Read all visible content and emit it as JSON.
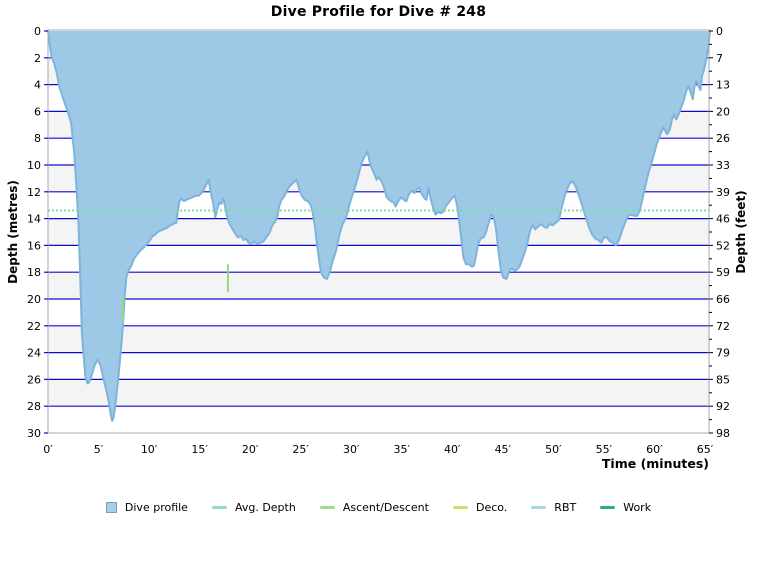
{
  "title": "Dive Profile for Dive # 248",
  "axes": {
    "x": {
      "label": "Time (minutes)"
    },
    "y_left": {
      "label": "Depth (metres)"
    },
    "y_right": {
      "label": "Depth (feet)"
    }
  },
  "legend": [
    {
      "label": "Dive profile",
      "swatch": "square",
      "color": "#a5cee9",
      "border": "#6f9fcd"
    },
    {
      "label": "Avg. Depth",
      "swatch": "line",
      "color": "#8fe0b4"
    },
    {
      "label": "Ascent/Descent",
      "swatch": "line",
      "color": "#a0dc82"
    },
    {
      "label": "Deco.",
      "swatch": "line",
      "color": "#d8d96a"
    },
    {
      "label": "RBT",
      "swatch": "line",
      "color": "#a9d5f0"
    },
    {
      "label": "Work",
      "swatch": "line",
      "color": "#33a98c"
    }
  ],
  "colors": {
    "gridline": "#0d0dcd",
    "band": "#f4f4f5",
    "border": "#a9a9ad",
    "area_fill": "#9dc9e6",
    "area_stroke": "#7eb3dc",
    "avg_depth_line": "#7edbac",
    "ascent_marker": "#99d97e",
    "tick_text": "#000000"
  },
  "chart_data": {
    "type": "area",
    "title": "Dive Profile for Dive # 248",
    "xlabel": "Time (minutes)",
    "ylabel": "Depth (metres)",
    "ylabel_right": "Depth (feet)",
    "xlim": [
      0,
      65.5
    ],
    "ylim": [
      0,
      30
    ],
    "y_inverted": true,
    "grid": true,
    "legend_position": "bottom",
    "x_ticks": [
      0,
      5,
      10,
      15,
      20,
      25,
      30,
      35,
      40,
      45,
      50,
      55,
      60,
      65
    ],
    "x_tick_labels": [
      "0′",
      "5′",
      "10′",
      "15′",
      "20′",
      "25′",
      "30′",
      "35′",
      "40′",
      "45′",
      "50′",
      "55′",
      "60′",
      "65′"
    ],
    "y_ticks_metres": [
      0,
      2,
      4,
      6,
      8,
      10,
      12,
      14,
      16,
      18,
      20,
      22,
      24,
      26,
      28,
      30
    ],
    "y_tick_labels_feet": [
      "0",
      "7",
      "13",
      "20",
      "26",
      "33",
      "39",
      "46",
      "52",
      "59",
      "66",
      "72",
      "79",
      "85",
      "92",
      "98"
    ],
    "avg_depth_metres": 13.4,
    "max_depth_metres": 29.1,
    "duration_minutes": 65.5,
    "ascent_descent_markers": [
      {
        "t": 7.4,
        "from_m": 19.9,
        "to_m": 21.7
      },
      {
        "t": 17.8,
        "from_m": 17.4,
        "to_m": 19.5
      }
    ],
    "series": [
      {
        "name": "Dive profile",
        "units": [
          "minutes",
          "metres"
        ],
        "points": [
          [
            0,
            0
          ],
          [
            0.2,
            1.2
          ],
          [
            0.35,
            1.9
          ],
          [
            0.6,
            2.4
          ],
          [
            0.85,
            3.1
          ],
          [
            1.1,
            4.1
          ],
          [
            1.4,
            4.8
          ],
          [
            1.7,
            5.5
          ],
          [
            2,
            6.1
          ],
          [
            2.3,
            6.9
          ],
          [
            2.6,
            9.2
          ],
          [
            2.8,
            11.5
          ],
          [
            3,
            14
          ],
          [
            3.2,
            18.5
          ],
          [
            3.35,
            22.6
          ],
          [
            3.5,
            24
          ],
          [
            3.7,
            25.8
          ],
          [
            3.9,
            26.3
          ],
          [
            4.1,
            26.2
          ],
          [
            4.35,
            25.6
          ],
          [
            4.6,
            25
          ],
          [
            4.9,
            24.5
          ],
          [
            5.2,
            25
          ],
          [
            5.5,
            26
          ],
          [
            5.8,
            26.9
          ],
          [
            6,
            27.6
          ],
          [
            6.2,
            28.6
          ],
          [
            6.35,
            29.1
          ],
          [
            6.5,
            28.8
          ],
          [
            6.65,
            28
          ],
          [
            6.8,
            27
          ],
          [
            7,
            25.6
          ],
          [
            7.15,
            24.3
          ],
          [
            7.3,
            23
          ],
          [
            7.45,
            21.5
          ],
          [
            7.6,
            19.6
          ],
          [
            7.75,
            18.4
          ],
          [
            7.9,
            18
          ],
          [
            8.1,
            17.7
          ],
          [
            8.3,
            17.4
          ],
          [
            8.5,
            17
          ],
          [
            8.8,
            16.7
          ],
          [
            9.1,
            16.4
          ],
          [
            9.4,
            16.2
          ],
          [
            9.8,
            15.9
          ],
          [
            10.1,
            15.6
          ],
          [
            10.35,
            15.3
          ],
          [
            10.6,
            15.2
          ],
          [
            10.85,
            15
          ],
          [
            11.1,
            14.9
          ],
          [
            11.45,
            14.8
          ],
          [
            11.75,
            14.7
          ],
          [
            12.1,
            14.5
          ],
          [
            12.4,
            14.4
          ],
          [
            12.7,
            14.3
          ],
          [
            12.85,
            13.4
          ],
          [
            13,
            12.7
          ],
          [
            13.2,
            12.5
          ],
          [
            13.45,
            12.7
          ],
          [
            13.7,
            12.6
          ],
          [
            14,
            12.5
          ],
          [
            14.3,
            12.4
          ],
          [
            14.6,
            12.3
          ],
          [
            14.9,
            12.3
          ],
          [
            15.2,
            12.1
          ],
          [
            15.5,
            11.7
          ],
          [
            15.75,
            11.3
          ],
          [
            15.9,
            11.1
          ],
          [
            16.1,
            12
          ],
          [
            16.35,
            12.9
          ],
          [
            16.55,
            13.9
          ],
          [
            16.75,
            13.3
          ],
          [
            16.95,
            12.8
          ],
          [
            17.15,
            12.9
          ],
          [
            17.35,
            12.5
          ],
          [
            17.55,
            13.2
          ],
          [
            17.7,
            13.8
          ],
          [
            17.9,
            14.3
          ],
          [
            18.2,
            14.7
          ],
          [
            18.5,
            15.1
          ],
          [
            18.8,
            15.4
          ],
          [
            19.1,
            15.3
          ],
          [
            19.35,
            15.6
          ],
          [
            19.6,
            15.5
          ],
          [
            19.85,
            15.8
          ],
          [
            20.1,
            15.9
          ],
          [
            20.4,
            15.7
          ],
          [
            20.7,
            15.9
          ],
          [
            21,
            15.8
          ],
          [
            21.3,
            15.7
          ],
          [
            21.6,
            15.4
          ],
          [
            21.9,
            15.1
          ],
          [
            22.2,
            14.5
          ],
          [
            22.5,
            14.2
          ],
          [
            22.7,
            13.8
          ],
          [
            22.9,
            13
          ],
          [
            23.1,
            12.6
          ],
          [
            23.4,
            12.3
          ],
          [
            23.7,
            11.8
          ],
          [
            24,
            11.5
          ],
          [
            24.3,
            11.3
          ],
          [
            24.6,
            11.1
          ],
          [
            24.85,
            11.8
          ],
          [
            25.1,
            12.3
          ],
          [
            25.4,
            12.6
          ],
          [
            25.7,
            12.7
          ],
          [
            26,
            13
          ],
          [
            26.2,
            13.6
          ],
          [
            26.4,
            14.5
          ],
          [
            26.6,
            15.8
          ],
          [
            26.8,
            17
          ],
          [
            27,
            18
          ],
          [
            27.3,
            18.4
          ],
          [
            27.6,
            18.5
          ],
          [
            27.9,
            17.9
          ],
          [
            28.2,
            17.1
          ],
          [
            28.5,
            16.4
          ],
          [
            28.8,
            15.3
          ],
          [
            29.1,
            14.5
          ],
          [
            29.5,
            13.9
          ],
          [
            29.8,
            13
          ],
          [
            30.1,
            12.3
          ],
          [
            30.4,
            11.6
          ],
          [
            30.7,
            10.8
          ],
          [
            31,
            9.9
          ],
          [
            31.3,
            9.4
          ],
          [
            31.6,
            9
          ],
          [
            31.9,
            10
          ],
          [
            32.2,
            10.5
          ],
          [
            32.5,
            11.1
          ],
          [
            32.7,
            10.9
          ],
          [
            33,
            11.2
          ],
          [
            33.25,
            11.7
          ],
          [
            33.5,
            12.4
          ],
          [
            33.9,
            12.7
          ],
          [
            34.2,
            12.8
          ],
          [
            34.4,
            13.1
          ],
          [
            34.65,
            12.7
          ],
          [
            34.95,
            12.4
          ],
          [
            35.2,
            12.6
          ],
          [
            35.45,
            12.7
          ],
          [
            35.7,
            12.2
          ],
          [
            36,
            11.9
          ],
          [
            36.25,
            12.1
          ],
          [
            36.5,
            11.8
          ],
          [
            36.75,
            11.7
          ],
          [
            37,
            12.2
          ],
          [
            37.25,
            12.5
          ],
          [
            37.45,
            12.6
          ],
          [
            37.65,
            11.7
          ],
          [
            37.85,
            12.5
          ],
          [
            38.1,
            13.2
          ],
          [
            38.35,
            13.7
          ],
          [
            38.6,
            13.5
          ],
          [
            38.85,
            13.6
          ],
          [
            39.1,
            13.5
          ],
          [
            39.35,
            13.1
          ],
          [
            39.65,
            12.8
          ],
          [
            39.95,
            12.5
          ],
          [
            40.25,
            12.3
          ],
          [
            40.5,
            13.1
          ],
          [
            40.7,
            14.3
          ],
          [
            40.9,
            15.6
          ],
          [
            41.1,
            16.9
          ],
          [
            41.35,
            17.4
          ],
          [
            41.65,
            17.4
          ],
          [
            41.95,
            17.6
          ],
          [
            42.15,
            17.5
          ],
          [
            42.35,
            16.8
          ],
          [
            42.55,
            15.9
          ],
          [
            42.8,
            15.5
          ],
          [
            43.1,
            15.4
          ],
          [
            43.35,
            15
          ],
          [
            43.6,
            14.3
          ],
          [
            43.85,
            13.7
          ],
          [
            44.1,
            13.9
          ],
          [
            44.3,
            14.6
          ],
          [
            44.55,
            16.3
          ],
          [
            44.8,
            17.8
          ],
          [
            45.05,
            18.4
          ],
          [
            45.35,
            18.5
          ],
          [
            45.65,
            17.9
          ],
          [
            45.9,
            17.7
          ],
          [
            46.15,
            17.9
          ],
          [
            46.4,
            17.8
          ],
          [
            46.65,
            17.6
          ],
          [
            46.9,
            17.1
          ],
          [
            47.15,
            16.6
          ],
          [
            47.4,
            15.9
          ],
          [
            47.7,
            14.9
          ],
          [
            47.95,
            14.5
          ],
          [
            48.2,
            14.8
          ],
          [
            48.5,
            14.6
          ],
          [
            48.8,
            14.4
          ],
          [
            49.05,
            14.6
          ],
          [
            49.35,
            14.7
          ],
          [
            49.65,
            14.4
          ],
          [
            49.95,
            14.5
          ],
          [
            50.25,
            14.3
          ],
          [
            50.55,
            14.1
          ],
          [
            50.8,
            13.3
          ],
          [
            51.05,
            12.5
          ],
          [
            51.3,
            11.9
          ],
          [
            51.6,
            11.4
          ],
          [
            51.9,
            11.2
          ],
          [
            52.2,
            11.6
          ],
          [
            52.5,
            12.2
          ],
          [
            52.8,
            12.9
          ],
          [
            53.05,
            13.5
          ],
          [
            53.3,
            14.1
          ],
          [
            53.55,
            14.7
          ],
          [
            53.85,
            15.2
          ],
          [
            54.15,
            15.5
          ],
          [
            54.45,
            15.6
          ],
          [
            54.75,
            15.8
          ],
          [
            55,
            15.4
          ],
          [
            55.3,
            15.4
          ],
          [
            55.6,
            15.7
          ],
          [
            55.9,
            15.8
          ],
          [
            56.2,
            16
          ],
          [
            56.5,
            15.6
          ],
          [
            56.8,
            14.9
          ],
          [
            57.1,
            14.3
          ],
          [
            57.4,
            13.8
          ],
          [
            57.7,
            13.7
          ],
          [
            58,
            13.8
          ],
          [
            58.3,
            13.8
          ],
          [
            58.55,
            13.4
          ],
          [
            58.8,
            12.6
          ],
          [
            59.1,
            11.6
          ],
          [
            59.4,
            10.6
          ],
          [
            59.65,
            10
          ],
          [
            59.95,
            9.2
          ],
          [
            60.25,
            8.4
          ],
          [
            60.55,
            7.8
          ],
          [
            60.85,
            7.2
          ],
          [
            61.1,
            7.5
          ],
          [
            61.25,
            7.7
          ],
          [
            61.5,
            7.4
          ],
          [
            61.75,
            6.6
          ],
          [
            61.95,
            6.2
          ],
          [
            62.15,
            6.6
          ],
          [
            62.4,
            6.2
          ],
          [
            62.65,
            5.7
          ],
          [
            62.9,
            5.2
          ],
          [
            63.1,
            4.6
          ],
          [
            63.35,
            4.1
          ],
          [
            63.6,
            4.6
          ],
          [
            63.8,
            5.1
          ],
          [
            63.95,
            4.2
          ],
          [
            64.15,
            3.7
          ],
          [
            64.35,
            4.1
          ],
          [
            64.55,
            4.4
          ],
          [
            64.7,
            3.4
          ],
          [
            64.9,
            2.9
          ],
          [
            65.1,
            2.2
          ],
          [
            65.3,
            1.3
          ],
          [
            65.45,
            0.4
          ],
          [
            65.5,
            0
          ]
        ]
      }
    ]
  }
}
